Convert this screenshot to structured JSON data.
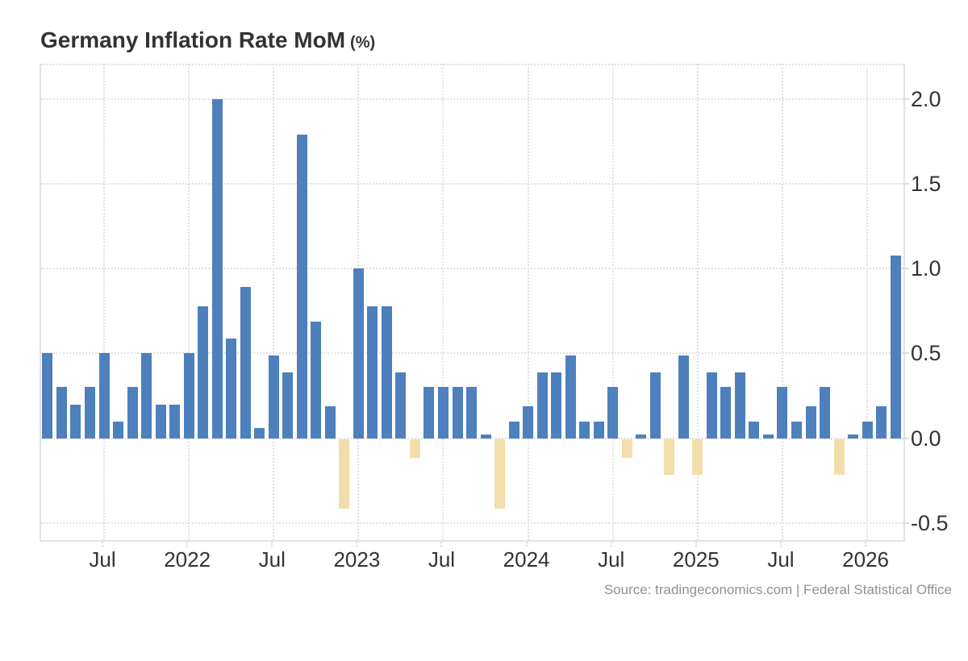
{
  "title": {
    "main": "Germany Inflation Rate MoM",
    "unit": "(%)"
  },
  "source": "Source: tradingeconomics.com | Federal Statistical Office",
  "colors": {
    "positive_bar": "#4d80bd",
    "negative_bar": "#f2deaa",
    "grid": "#e0e0e0",
    "axis_text": "#333333",
    "source_text": "#919191"
  },
  "chart_data": {
    "type": "bar",
    "title": "Germany Inflation Rate MoM (%)",
    "xlabel": "",
    "ylabel": "%",
    "ylim": [
      -0.6,
      2.21
    ],
    "grid": "dotted, both axes",
    "legend": "none",
    "y_ticks": [
      2.0,
      1.5,
      1.0,
      0.5,
      0.0,
      -0.5
    ],
    "x_ticks": [
      {
        "label": "Jul",
        "month_index": 4
      },
      {
        "label": "2022",
        "month_index": 10
      },
      {
        "label": "Jul",
        "month_index": 16
      },
      {
        "label": "2023",
        "month_index": 22
      },
      {
        "label": "Jul",
        "month_index": 28
      },
      {
        "label": "2024",
        "month_index": 34
      },
      {
        "label": "Jul",
        "month_index": 40
      },
      {
        "label": "2025",
        "month_index": 46
      },
      {
        "label": "Jul",
        "month_index": 52
      },
      {
        "label": "2026",
        "month_index": 58
      }
    ],
    "categories": [
      "Mar 2021",
      "Apr 2021",
      "May 2021",
      "Jun 2021",
      "Jul 2021",
      "Aug 2021",
      "Sep 2021",
      "Oct 2021",
      "Nov 2021",
      "Dec 2021",
      "Jan 2022",
      "Feb 2022",
      "Mar 2022",
      "Apr 2022",
      "May 2022",
      "Jun 2022",
      "Jul 2022",
      "Aug 2022",
      "Sep 2022",
      "Oct 2022",
      "Nov 2022",
      "Dec 2022",
      "Jan 2023",
      "Feb 2023",
      "Mar 2023",
      "Apr 2023",
      "May 2023",
      "Jun 2023",
      "Jul 2023",
      "Aug 2023",
      "Sep 2023",
      "Oct 2023",
      "Nov 2023",
      "Dec 2023",
      "Jan 2024",
      "Feb 2024",
      "Mar 2024",
      "Apr 2024",
      "May 2024",
      "Jun 2024",
      "Jul 2024",
      "Aug 2024",
      "Sep 2024",
      "Oct 2024",
      "Nov 2024",
      "Dec 2024",
      "Jan 2025",
      "Feb 2025",
      "Mar 2025",
      "Apr 2025",
      "May 2025",
      "Jun 2025",
      "Jul 2025",
      "Aug 2025",
      "Sep 2025",
      "Oct 2025",
      "Nov 2025",
      "Dec 2025",
      "Jan 2026",
      "Feb 2026",
      "Mar 2026"
    ],
    "values": [
      0.5,
      0.3,
      0.2,
      0.3,
      0.5,
      0.1,
      0.3,
      0.5,
      0.2,
      0.2,
      0.5,
      0.78,
      2.0,
      0.59,
      0.89,
      0.06,
      0.49,
      0.39,
      1.79,
      0.69,
      0.19,
      -0.41,
      1.0,
      0.78,
      0.78,
      0.39,
      -0.11,
      0.3,
      0.3,
      0.3,
      0.3,
      0.02,
      -0.41,
      0.1,
      0.19,
      0.39,
      0.39,
      0.49,
      0.1,
      0.1,
      0.3,
      -0.11,
      0.02,
      0.39,
      -0.21,
      0.49,
      -0.21,
      0.39,
      0.3,
      0.39,
      0.1,
      0.02,
      0.3,
      0.1,
      0.19,
      0.3,
      -0.21,
      0.02,
      0.1,
      0.19,
      1.08
    ]
  }
}
